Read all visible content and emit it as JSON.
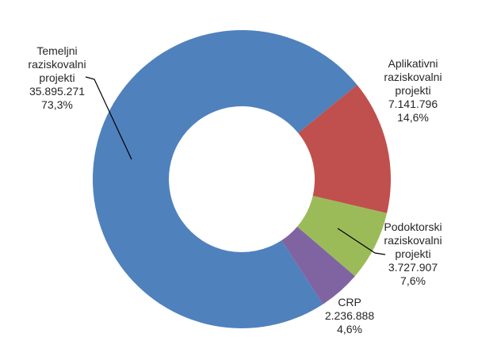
{
  "page": {
    "background": "#FFFFFF"
  },
  "chart_data": {
    "type": "pie",
    "subtype": "donut",
    "title": "",
    "legend_position": "none",
    "grid": false,
    "rotation": "clockwise",
    "start_angle_deg": 147,
    "hole_ratio": 0.49,
    "label_text_color": "#262626",
    "leader_line_color": "#000000",
    "categories": [
      "Temeljni raziskovalni projekti",
      "Aplikativni raziskovalni projekti",
      "Podoktorski raziskovalni projekti",
      "CRP"
    ],
    "values": [
      35895271,
      7141796,
      3727907,
      2236888
    ],
    "percent_labels": [
      "73,3%",
      "14,6%",
      "7,6%",
      "4,6%"
    ],
    "colors": [
      "#4F81BD",
      "#C0504D",
      "#9BBB59",
      "#8064A2"
    ],
    "slices": [
      {
        "name": "temeljni",
        "value": 35895271,
        "color": "#4F81BD",
        "lines": [
          "Temeljni",
          "raziskovalni",
          "projekti",
          "35.895.271",
          "73,3%"
        ]
      },
      {
        "name": "aplikativni",
        "value": 7141796,
        "color": "#C0504D",
        "lines": [
          "Aplikativni",
          "raziskovalni",
          "projekti",
          "7.141.796",
          "14,6%"
        ]
      },
      {
        "name": "podoktorski",
        "value": 3727907,
        "color": "#9BBB59",
        "lines": [
          "Podoktorski",
          "raziskovalni",
          "projekti",
          "3.727.907",
          "7,6%"
        ]
      },
      {
        "name": "crp",
        "value": 2236888,
        "color": "#8064A2",
        "lines": [
          "CRP",
          "2.236.888",
          "4,6%"
        ]
      }
    ]
  }
}
